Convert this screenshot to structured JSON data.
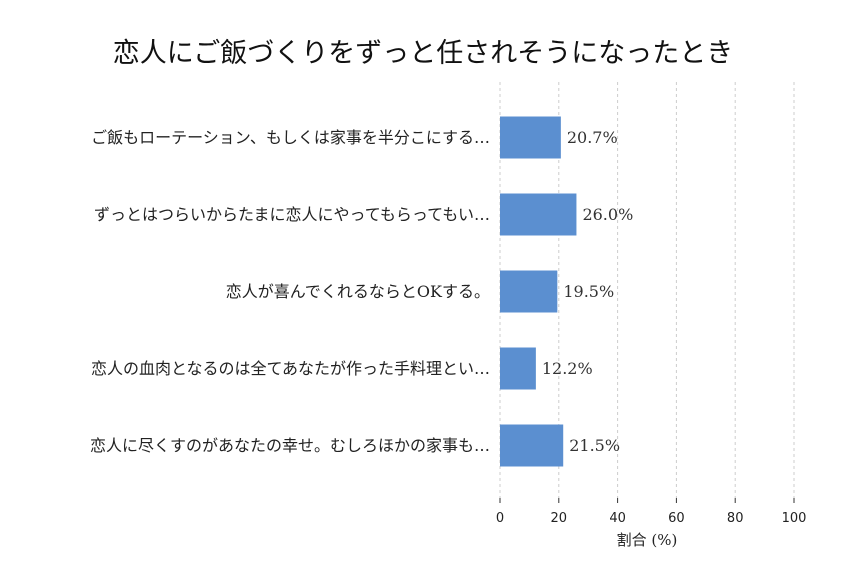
{
  "chart_data": {
    "type": "bar",
    "orientation": "horizontal",
    "title": "恋人にご飯づくりをずっと任されそうになったとき",
    "categories": [
      "ご飯もローテーション、もしくは家事を半分こにする…",
      "ずっとはつらいからたまに恋人にやってもらってもい…",
      "恋人が喜んでくれるならとOKする。",
      "恋人の血肉となるのは全てあなたが作った手料理とい…",
      "恋人に尽くすのがあなたの幸せ。むしろほかの家事も…"
    ],
    "values": [
      20.7,
      26.0,
      19.5,
      12.2,
      21.5
    ],
    "value_labels": [
      "20.7%",
      "26.0%",
      "19.5%",
      "12.2%",
      "21.5%"
    ],
    "xlabel": "割合 (%)",
    "ylabel": "",
    "xlim": [
      0,
      100
    ],
    "xticks": [
      "0",
      "20",
      "40",
      "60",
      "80",
      "100"
    ],
    "grid": "x, dashed",
    "bar_color": "#5b8fd0"
  }
}
